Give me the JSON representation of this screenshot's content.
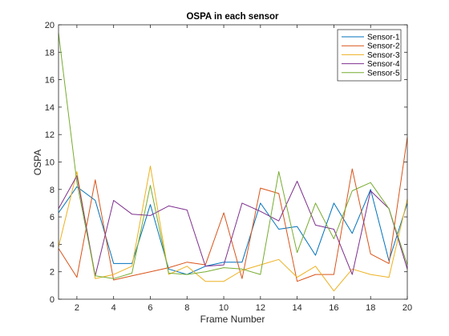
{
  "chart_data": {
    "type": "line",
    "title": "OSPA in each sensor",
    "xlabel": "Frame Number",
    "ylabel": "OSPA",
    "xlim": [
      1,
      20
    ],
    "ylim": [
      0,
      20
    ],
    "xticks": [
      2,
      4,
      6,
      8,
      10,
      12,
      14,
      16,
      18,
      20
    ],
    "yticks": [
      0,
      2,
      4,
      6,
      8,
      10,
      12,
      14,
      16,
      18,
      20
    ],
    "grid": false,
    "legend_position": "top-right",
    "x": [
      1,
      2,
      3,
      4,
      5,
      6,
      7,
      8,
      9,
      10,
      11,
      12,
      13,
      14,
      15,
      16,
      17,
      18,
      19,
      20
    ],
    "series": [
      {
        "name": "Sensor-1",
        "color": "#0072BD",
        "values": [
          6.3,
          8.2,
          7.2,
          2.6,
          2.6,
          6.9,
          2.2,
          1.8,
          2.4,
          2.7,
          2.7,
          7.0,
          5.1,
          5.3,
          3.2,
          7.0,
          4.8,
          8.0,
          2.8,
          7.0
        ]
      },
      {
        "name": "Sensor-2",
        "color": "#D95319",
        "values": [
          3.7,
          1.6,
          8.7,
          1.4,
          1.7,
          2.0,
          2.3,
          2.7,
          2.5,
          6.3,
          1.5,
          8.1,
          7.7,
          1.3,
          1.8,
          1.8,
          9.5,
          3.3,
          2.6,
          11.8
        ]
      },
      {
        "name": "Sensor-3",
        "color": "#EDB120",
        "values": [
          3.8,
          9.3,
          1.5,
          1.8,
          2.4,
          9.7,
          1.8,
          2.4,
          1.3,
          1.3,
          2.1,
          2.5,
          2.9,
          1.6,
          2.4,
          0.6,
          2.2,
          1.8,
          1.6,
          7.3
        ]
      },
      {
        "name": "Sensor-4",
        "color": "#7E2F8E",
        "values": [
          6.6,
          9.0,
          1.7,
          7.2,
          6.2,
          6.1,
          6.8,
          6.5,
          2.4,
          2.5,
          7.0,
          6.4,
          5.7,
          8.6,
          5.4,
          5.1,
          1.8,
          7.9,
          6.6,
          2.2
        ]
      },
      {
        "name": "Sensor-5",
        "color": "#77AC30",
        "values": [
          19.4,
          8.5,
          1.7,
          1.5,
          1.9,
          8.3,
          1.9,
          1.8,
          2.0,
          2.3,
          2.2,
          1.8,
          9.3,
          3.4,
          7.0,
          4.4,
          7.9,
          8.5,
          6.6,
          2.5
        ]
      }
    ]
  }
}
